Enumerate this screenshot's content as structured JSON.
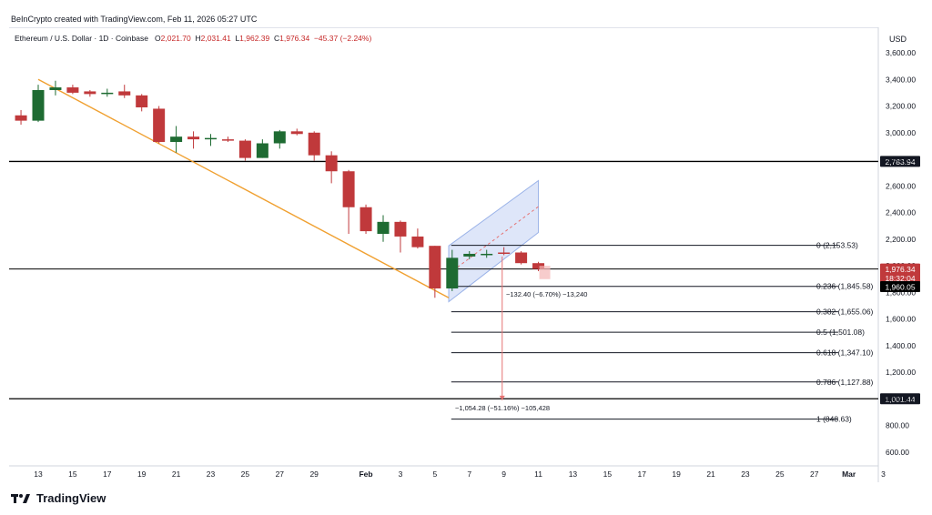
{
  "credit": "BeInCrypto created with TradingView.com, Feb 11, 2026 05:27 UTC",
  "symbol": {
    "name": "Ethereum / U.S. Dollar · 1D · Coinbase",
    "o_label": "O",
    "o": "2,021.70",
    "h_label": "H",
    "h": "2,031.41",
    "l_label": "L",
    "l": "1,962.39",
    "c_label": "C",
    "c": "1,976.34",
    "change": "−45.37 (−2.24%)"
  },
  "brand": "TradingView",
  "colors": {
    "up": "#1e6b32",
    "down": "#c0393b",
    "trend": "#f0a030",
    "channel": "#c8d6f5",
    "level": "#000000"
  },
  "chart_data": {
    "type": "candlestick",
    "currency": "USD",
    "ylim": [
      560,
      3700
    ],
    "y_ticks": [
      "600.00",
      "800.00",
      "1,000.00",
      "1,200.00",
      "1,400.00",
      "1,600.00",
      "1,800.00",
      "2,000.00",
      "2,200.00",
      "2,400.00",
      "2,600.00",
      "2,800.00",
      "3,000.00",
      "3,200.00",
      "3,400.00",
      "3,600.00"
    ],
    "y_tick_values": [
      600,
      800,
      1000,
      1200,
      1400,
      1600,
      1800,
      2000,
      2200,
      2400,
      2600,
      2800,
      3000,
      3200,
      3400,
      3600
    ],
    "x_ticks": [
      {
        "label": "13",
        "day": 13
      },
      {
        "label": "15",
        "day": 15
      },
      {
        "label": "17",
        "day": 17
      },
      {
        "label": "19",
        "day": 19
      },
      {
        "label": "21",
        "day": 21
      },
      {
        "label": "23",
        "day": 23
      },
      {
        "label": "25",
        "day": 25
      },
      {
        "label": "27",
        "day": 27
      },
      {
        "label": "29",
        "day": 29
      },
      {
        "label": "Feb",
        "day": 32
      },
      {
        "label": "3",
        "day": 34
      },
      {
        "label": "5",
        "day": 36
      },
      {
        "label": "7",
        "day": 38
      },
      {
        "label": "9",
        "day": 40
      },
      {
        "label": "11",
        "day": 42
      },
      {
        "label": "13",
        "day": 44
      },
      {
        "label": "15",
        "day": 46
      },
      {
        "label": "17",
        "day": 48
      },
      {
        "label": "19",
        "day": 50
      },
      {
        "label": "21",
        "day": 52
      },
      {
        "label": "23",
        "day": 54
      },
      {
        "label": "25",
        "day": 56
      },
      {
        "label": "27",
        "day": 58
      },
      {
        "label": "Mar",
        "day": 60
      },
      {
        "label": "3",
        "day": 62
      }
    ],
    "candles": [
      {
        "day": 12,
        "o": 3130,
        "h": 3170,
        "l": 3060,
        "c": 3090
      },
      {
        "day": 13,
        "o": 3090,
        "h": 3360,
        "l": 3080,
        "c": 3320
      },
      {
        "day": 14,
        "o": 3320,
        "h": 3390,
        "l": 3280,
        "c": 3340
      },
      {
        "day": 15,
        "o": 3340,
        "h": 3360,
        "l": 3290,
        "c": 3300
      },
      {
        "day": 16,
        "o": 3310,
        "h": 3320,
        "l": 3270,
        "c": 3290
      },
      {
        "day": 17,
        "o": 3290,
        "h": 3330,
        "l": 3270,
        "c": 3300
      },
      {
        "day": 18,
        "o": 3310,
        "h": 3360,
        "l": 3260,
        "c": 3280
      },
      {
        "day": 19,
        "o": 3280,
        "h": 3290,
        "l": 3160,
        "c": 3190
      },
      {
        "day": 20,
        "o": 3180,
        "h": 3200,
        "l": 2920,
        "c": 2930
      },
      {
        "day": 21,
        "o": 2930,
        "h": 3050,
        "l": 2850,
        "c": 2970
      },
      {
        "day": 22,
        "o": 2970,
        "h": 3010,
        "l": 2880,
        "c": 2950
      },
      {
        "day": 23,
        "o": 2950,
        "h": 2990,
        "l": 2900,
        "c": 2960
      },
      {
        "day": 24,
        "o": 2950,
        "h": 2970,
        "l": 2930,
        "c": 2945
      },
      {
        "day": 25,
        "o": 2940,
        "h": 2950,
        "l": 2790,
        "c": 2810
      },
      {
        "day": 26,
        "o": 2810,
        "h": 2950,
        "l": 2810,
        "c": 2920
      },
      {
        "day": 27,
        "o": 2920,
        "h": 3020,
        "l": 2880,
        "c": 3010
      },
      {
        "day": 28,
        "o": 3010,
        "h": 3030,
        "l": 2980,
        "c": 2990
      },
      {
        "day": 29,
        "o": 3000,
        "h": 3010,
        "l": 2790,
        "c": 2830
      },
      {
        "day": 30,
        "o": 2830,
        "h": 2860,
        "l": 2620,
        "c": 2710
      },
      {
        "day": 31,
        "o": 2710,
        "h": 2720,
        "l": 2240,
        "c": 2440
      },
      {
        "day": 32,
        "o": 2440,
        "h": 2460,
        "l": 2240,
        "c": 2260
      },
      {
        "day": 33,
        "o": 2240,
        "h": 2380,
        "l": 2180,
        "c": 2330
      },
      {
        "day": 34,
        "o": 2330,
        "h": 2340,
        "l": 2100,
        "c": 2220
      },
      {
        "day": 35,
        "o": 2220,
        "h": 2280,
        "l": 2130,
        "c": 2140
      },
      {
        "day": 36,
        "o": 2150,
        "h": 2150,
        "l": 1760,
        "c": 1830
      },
      {
        "day": 37,
        "o": 1830,
        "h": 2120,
        "l": 1810,
        "c": 2060
      },
      {
        "day": 38,
        "o": 2070,
        "h": 2110,
        "l": 2050,
        "c": 2090
      },
      {
        "day": 39,
        "o": 2090,
        "h": 2120,
        "l": 2060,
        "c": 2090
      },
      {
        "day": 40,
        "o": 2100,
        "h": 2140,
        "l": 2080,
        "c": 2090
      },
      {
        "day": 41,
        "o": 2100,
        "h": 2110,
        "l": 2010,
        "c": 2020
      },
      {
        "day": 42,
        "o": 2020,
        "h": 2030,
        "l": 1960,
        "c": 1976
      }
    ],
    "horizontal_levels": [
      {
        "value": 2783.94,
        "label": "2,783.94"
      },
      {
        "value": 1001.44,
        "label": "1,001.44"
      },
      {
        "value": 1976.34,
        "label": "1,976.34"
      }
    ],
    "price_tags": [
      {
        "value": 1976.34,
        "label": "1,976.34",
        "sub": "18:32:04",
        "color": "#c0393b"
      },
      {
        "value": 1960.05,
        "label": "1,960.05",
        "color": "#000000"
      }
    ],
    "fib": {
      "start_day": 37,
      "end_day": 55,
      "levels": [
        {
          "value": 2153.53,
          "label": "0 (2,153.53)"
        },
        {
          "value": 1845.58,
          "label": "0.236 (1,845.58)"
        },
        {
          "value": 1655.06,
          "label": "0.382 (1,655.06)"
        },
        {
          "value": 1501.08,
          "label": "0.5 (1,501.08)"
        },
        {
          "value": 1347.1,
          "label": "0.618 (1,347.10)"
        },
        {
          "value": 1127.88,
          "label": "0.786 (1,127.88)"
        },
        {
          "value": 848.63,
          "label": "1 (848.63)"
        }
      ]
    },
    "trendline": {
      "from": {
        "day": 13,
        "v": 3400
      },
      "to": {
        "day": 36.8,
        "v": 1760
      }
    },
    "channel": {
      "lower": [
        {
          "day": 36.8,
          "v": 1730
        },
        {
          "day": 42,
          "v": 2250
        }
      ],
      "upper": [
        {
          "day": 36.8,
          "v": 2150
        },
        {
          "day": 42,
          "v": 2640
        }
      ]
    },
    "measure_short": {
      "label": "−132.40 (−6.70%) −13,240",
      "value": 1790
    },
    "measure_long": {
      "label": "−1,054.28 (−51.16%) −105,428",
      "value": 935
    },
    "arrow": {
      "day": 39.9,
      "from": 2070,
      "to": 990
    }
  }
}
